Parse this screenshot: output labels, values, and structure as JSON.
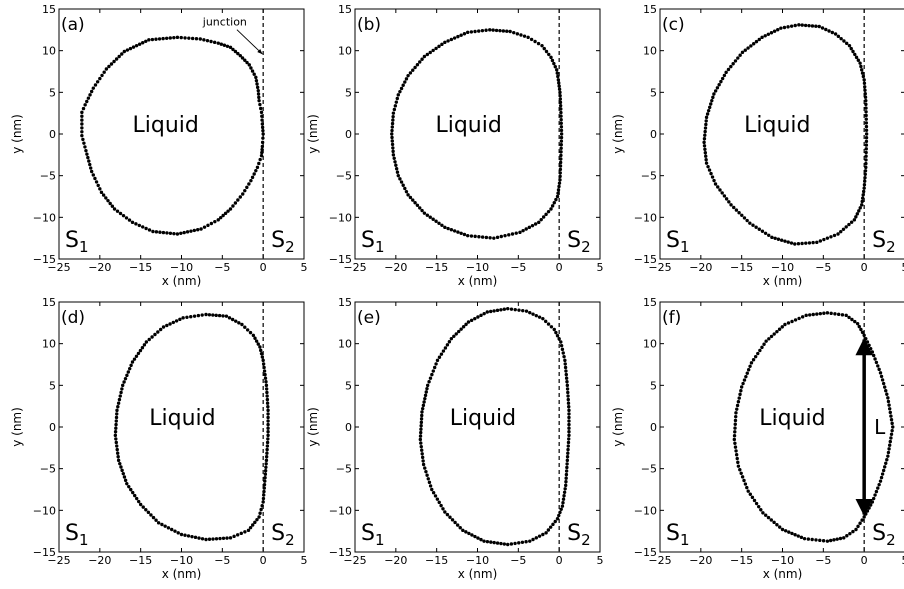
{
  "chart_data": [
    {
      "type": "scatter",
      "panel_label": "(a)",
      "xlabel": "x (nm)",
      "ylabel": "y (nm)",
      "xlim": [
        -25,
        5
      ],
      "ylim": [
        -15,
        15
      ],
      "xticks": [
        -25,
        -20,
        -15,
        -10,
        -5,
        0,
        5
      ],
      "yticks": [
        -15,
        -10,
        -5,
        0,
        5,
        10,
        15
      ],
      "junction_x": 0,
      "region_labels": {
        "liquid": "Liquid",
        "s1": "S",
        "s1_sub": "1",
        "s2": "S",
        "s2_sub": "2"
      },
      "annotation": {
        "text": "junction",
        "x_from": -1.5,
        "y_from": 13,
        "x_to": 0,
        "y_to": 9.5
      },
      "contour": [
        [
          -10.5,
          11.6
        ],
        [
          -7.7,
          11.4
        ],
        [
          -5.5,
          10.9
        ],
        [
          -4,
          10.4
        ],
        [
          -2.8,
          9.4
        ],
        [
          -1.7,
          8.3
        ],
        [
          -0.9,
          6.8
        ],
        [
          -0.6,
          5.2
        ],
        [
          -0.5,
          4
        ],
        [
          -0.2,
          2.6
        ],
        [
          -0.1,
          1.2
        ],
        [
          0,
          0
        ],
        [
          -0.1,
          -1.5
        ],
        [
          -0.2,
          -2.6
        ],
        [
          -0.7,
          -4
        ],
        [
          -1.5,
          -5.6
        ],
        [
          -2.5,
          -7.2
        ],
        [
          -4,
          -9
        ],
        [
          -5.5,
          -10.3
        ],
        [
          -7.6,
          -11.4
        ],
        [
          -10.5,
          -12
        ],
        [
          -13.5,
          -11.7
        ],
        [
          -16,
          -10.6
        ],
        [
          -18.2,
          -9
        ],
        [
          -19.8,
          -7
        ],
        [
          -21,
          -4.5
        ],
        [
          -21.7,
          -2
        ],
        [
          -22.2,
          -0.2
        ],
        [
          -22.2,
          2.6
        ],
        [
          -21.8,
          3.5
        ],
        [
          -20.8,
          5.5
        ],
        [
          -19.2,
          7.8
        ],
        [
          -17,
          9.9
        ],
        [
          -14,
          11.3
        ],
        [
          -10.5,
          11.6
        ]
      ]
    },
    {
      "type": "scatter",
      "panel_label": "(b)",
      "xlabel": "x (nm)",
      "ylabel": "y (nm)",
      "xlim": [
        -25,
        5
      ],
      "ylim": [
        -15,
        15
      ],
      "xticks": [
        -25,
        -20,
        -15,
        -10,
        -5,
        0,
        5
      ],
      "yticks": [
        -15,
        -10,
        -5,
        0,
        5,
        10,
        15
      ],
      "junction_x": 0,
      "region_labels": {
        "liquid": "Liquid",
        "s1": "S",
        "s1_sub": "1",
        "s2": "S",
        "s2_sub": "2"
      },
      "contour": [
        [
          -8.5,
          12.5
        ],
        [
          -6,
          12.3
        ],
        [
          -3.8,
          11.6
        ],
        [
          -2.1,
          10.6
        ],
        [
          -1,
          9.2
        ],
        [
          -0.3,
          7.7
        ],
        [
          -0.1,
          6.5
        ],
        [
          0.1,
          5
        ],
        [
          0.2,
          3
        ],
        [
          0.3,
          0
        ],
        [
          0.2,
          -3
        ],
        [
          0.1,
          -5.5
        ],
        [
          -0.2,
          -7.5
        ],
        [
          -1,
          -9
        ],
        [
          -2.5,
          -10.6
        ],
        [
          -4.8,
          -11.8
        ],
        [
          -8,
          -12.5
        ],
        [
          -11.2,
          -12.2
        ],
        [
          -14,
          -11.2
        ],
        [
          -16.5,
          -9.5
        ],
        [
          -18.5,
          -7.3
        ],
        [
          -19.7,
          -5
        ],
        [
          -20.3,
          -2.5
        ],
        [
          -20.5,
          0
        ],
        [
          -20.3,
          2.5
        ],
        [
          -19.7,
          4.7
        ],
        [
          -18.5,
          7
        ],
        [
          -16.5,
          9.3
        ],
        [
          -14,
          11
        ],
        [
          -11.2,
          12.2
        ],
        [
          -8.5,
          12.5
        ]
      ]
    },
    {
      "type": "scatter",
      "panel_label": "(c)",
      "xlabel": "x (nm)",
      "ylabel": "y (nm)",
      "xlim": [
        -25,
        5
      ],
      "ylim": [
        -15,
        15
      ],
      "xticks": [
        -25,
        -20,
        -15,
        -10,
        -5,
        0,
        5
      ],
      "yticks": [
        -15,
        -10,
        -5,
        0,
        5,
        10,
        15
      ],
      "junction_x": 0,
      "region_labels": {
        "liquid": "Liquid",
        "s1": "S",
        "s1_sub": "1",
        "s2": "S",
        "s2_sub": "2"
      },
      "contour": [
        [
          -8,
          13.1
        ],
        [
          -5.5,
          12.9
        ],
        [
          -3.5,
          12
        ],
        [
          -1.8,
          10.6
        ],
        [
          -0.5,
          8.5
        ],
        [
          0,
          6.5
        ],
        [
          0.2,
          4
        ],
        [
          0.3,
          0
        ],
        [
          0.2,
          -4
        ],
        [
          0,
          -6.5
        ],
        [
          -0.3,
          -8.5
        ],
        [
          -1.2,
          -10.3
        ],
        [
          -3.2,
          -12
        ],
        [
          -5.8,
          -13
        ],
        [
          -8.5,
          -13.2
        ],
        [
          -11.3,
          -12.4
        ],
        [
          -14,
          -10.7
        ],
        [
          -16.3,
          -8.5
        ],
        [
          -18.2,
          -6
        ],
        [
          -19.3,
          -3.5
        ],
        [
          -19.6,
          -1
        ],
        [
          -19.3,
          2
        ],
        [
          -18.4,
          4.8
        ],
        [
          -16.9,
          7.4
        ],
        [
          -14.9,
          9.8
        ],
        [
          -12.5,
          11.6
        ],
        [
          -10.2,
          12.7
        ],
        [
          -8,
          13.1
        ]
      ]
    },
    {
      "type": "scatter",
      "panel_label": "(d)",
      "xlabel": "x (nm)",
      "ylabel": "y (nm)",
      "xlim": [
        -25,
        5
      ],
      "ylim": [
        -15,
        15
      ],
      "xticks": [
        -25,
        -20,
        -15,
        -10,
        -5,
        0,
        5
      ],
      "yticks": [
        -15,
        -10,
        -5,
        0,
        5,
        10,
        15
      ],
      "junction_x": 0,
      "region_labels": {
        "liquid": "Liquid",
        "s1": "S",
        "s1_sub": "1",
        "s2": "S",
        "s2_sub": "2"
      },
      "contour": [
        [
          -7,
          13.5
        ],
        [
          -4.5,
          13.3
        ],
        [
          -2.6,
          12.3
        ],
        [
          -1.2,
          11
        ],
        [
          -0.4,
          9.6
        ],
        [
          0,
          8
        ],
        [
          0.4,
          5
        ],
        [
          0.6,
          2
        ],
        [
          0.6,
          -1
        ],
        [
          0.4,
          -4
        ],
        [
          0.2,
          -6.5
        ],
        [
          0,
          -9
        ],
        [
          -0.5,
          -10.8
        ],
        [
          -1.8,
          -12.4
        ],
        [
          -4,
          -13.3
        ],
        [
          -7,
          -13.5
        ],
        [
          -10,
          -12.9
        ],
        [
          -12.8,
          -11.5
        ],
        [
          -15,
          -9.3
        ],
        [
          -16.7,
          -6.8
        ],
        [
          -17.7,
          -4
        ],
        [
          -18.1,
          -1
        ],
        [
          -17.9,
          2
        ],
        [
          -17.2,
          5
        ],
        [
          -16,
          7.8
        ],
        [
          -14.3,
          10.2
        ],
        [
          -12.2,
          12
        ],
        [
          -9.8,
          13.1
        ],
        [
          -7,
          13.5
        ]
      ]
    },
    {
      "type": "scatter",
      "panel_label": "(e)",
      "xlabel": "x (nm)",
      "ylabel": "y (nm)",
      "xlim": [
        -25,
        5
      ],
      "ylim": [
        -15,
        15
      ],
      "xticks": [
        -25,
        -20,
        -15,
        -10,
        -5,
        0,
        5
      ],
      "yticks": [
        -15,
        -10,
        -5,
        0,
        5,
        10,
        15
      ],
      "junction_x": 0,
      "region_labels": {
        "liquid": "Liquid",
        "s1": "S",
        "s1_sub": "1",
        "s2": "S",
        "s2_sub": "2"
      },
      "contour": [
        [
          -6.3,
          14.2
        ],
        [
          -4,
          13.9
        ],
        [
          -2,
          13
        ],
        [
          -0.6,
          11.7
        ],
        [
          0.2,
          10.2
        ],
        [
          0.7,
          8
        ],
        [
          1,
          5
        ],
        [
          1.2,
          2
        ],
        [
          1.2,
          -1
        ],
        [
          1,
          -4
        ],
        [
          0.8,
          -7
        ],
        [
          0.4,
          -9.5
        ],
        [
          -0.2,
          -11
        ],
        [
          -1.6,
          -12.7
        ],
        [
          -3.6,
          -13.7
        ],
        [
          -6.3,
          -14.1
        ],
        [
          -9.2,
          -13.7
        ],
        [
          -11.8,
          -12.4
        ],
        [
          -14,
          -10.2
        ],
        [
          -15.6,
          -7.5
        ],
        [
          -16.6,
          -4.5
        ],
        [
          -17,
          -1.5
        ],
        [
          -16.8,
          1.8
        ],
        [
          -16.1,
          5
        ],
        [
          -14.9,
          8
        ],
        [
          -13.2,
          10.6
        ],
        [
          -11.1,
          12.6
        ],
        [
          -8.8,
          13.8
        ],
        [
          -6.3,
          14.2
        ]
      ]
    },
    {
      "type": "scatter",
      "panel_label": "(f)",
      "xlabel": "x (nm)",
      "ylabel": "y (nm)",
      "xlim": [
        -25,
        5
      ],
      "ylim": [
        -15,
        15
      ],
      "xticks": [
        -25,
        -20,
        -15,
        -10,
        -5,
        0,
        5
      ],
      "yticks": [
        -15,
        -10,
        -5,
        0,
        5,
        10,
        15
      ],
      "junction_x": 0,
      "region_labels": {
        "liquid": "Liquid",
        "s1": "S",
        "s1_sub": "1",
        "s2": "S",
        "s2_sub": "2"
      },
      "length_marker": {
        "label": "L",
        "x": 0,
        "y1": -10.5,
        "y2": 10.5
      },
      "contour": [
        [
          -4.5,
          13.7
        ],
        [
          -2.2,
          13.4
        ],
        [
          -0.8,
          12.4
        ],
        [
          0,
          11
        ],
        [
          1,
          9
        ],
        [
          2,
          6.5
        ],
        [
          2.9,
          3.5
        ],
        [
          3.5,
          0
        ],
        [
          2.9,
          -3.5
        ],
        [
          2,
          -6.5
        ],
        [
          1,
          -9
        ],
        [
          0,
          -10.8
        ],
        [
          -1,
          -12.3
        ],
        [
          -2.5,
          -13.3
        ],
        [
          -4.5,
          -13.7
        ],
        [
          -7.3,
          -13.4
        ],
        [
          -10,
          -12.3
        ],
        [
          -12.4,
          -10.3
        ],
        [
          -14.2,
          -7.7
        ],
        [
          -15.4,
          -4.7
        ],
        [
          -15.9,
          -1.5
        ],
        [
          -15.7,
          1.7
        ],
        [
          -15,
          4.8
        ],
        [
          -13.8,
          7.7
        ],
        [
          -12,
          10.3
        ],
        [
          -9.7,
          12.3
        ],
        [
          -7.1,
          13.4
        ],
        [
          -4.5,
          13.7
        ]
      ]
    }
  ]
}
